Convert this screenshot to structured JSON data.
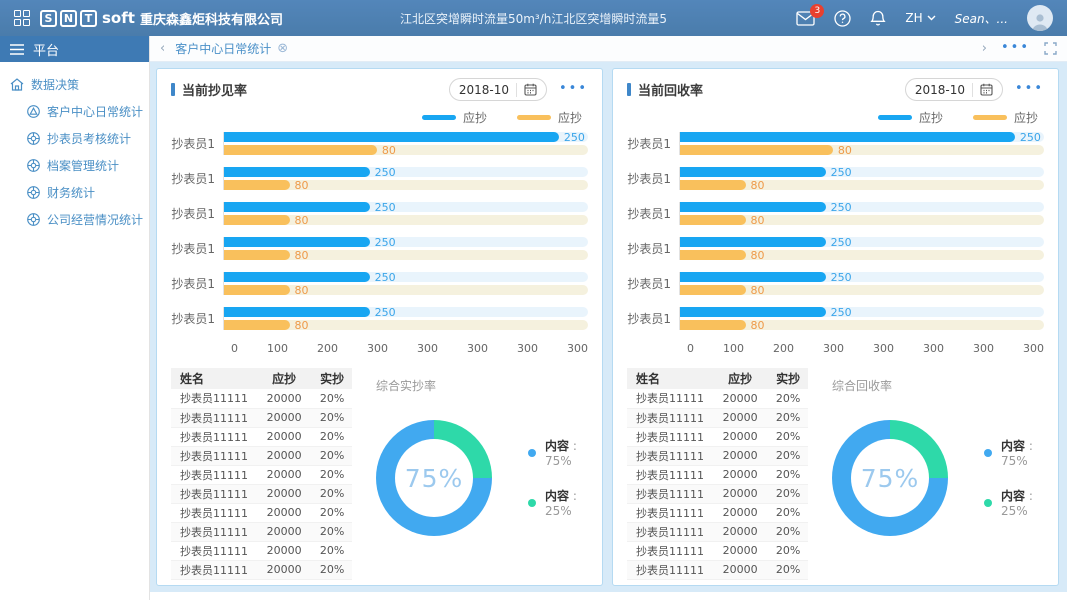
{
  "header": {
    "logo_snt": [
      "S",
      "N",
      "T"
    ],
    "logo_soft": "soft",
    "company": "重庆森鑫炬科技有限公司",
    "announcement": "江北区突增瞬时流量50m³/h江北区突增瞬时流量5",
    "mail_badge": "3",
    "lang": "ZH",
    "user": "Sean、..."
  },
  "sidebar": {
    "title": "平台",
    "root_item": "数据决策",
    "items": [
      {
        "label": "客户中心日常统计"
      },
      {
        "label": "抄表员考核统计"
      },
      {
        "label": "档案管理统计"
      },
      {
        "label": "财务统计"
      },
      {
        "label": "公司经营情况统计"
      }
    ]
  },
  "tabbar": {
    "active_tab": "客户中心日常统计"
  },
  "panels": [
    {
      "title": "当前抄见率",
      "date": "2018-10",
      "table": {
        "headers": [
          "姓名",
          "应抄",
          "实抄"
        ],
        "rows": [
          [
            "抄表员11111",
            "20000",
            "20%"
          ],
          [
            "抄表员11111",
            "20000",
            "20%"
          ],
          [
            "抄表员11111",
            "20000",
            "20%"
          ],
          [
            "抄表员11111",
            "20000",
            "20%"
          ],
          [
            "抄表员11111",
            "20000",
            "20%"
          ],
          [
            "抄表员11111",
            "20000",
            "20%"
          ],
          [
            "抄表员11111",
            "20000",
            "20%"
          ],
          [
            "抄表员11111",
            "20000",
            "20%"
          ],
          [
            "抄表员11111",
            "20000",
            "20%"
          ],
          [
            "抄表员11111",
            "20000",
            "20%"
          ]
        ]
      }
    },
    {
      "title": "当前回收率",
      "date": "2018-10",
      "table": {
        "headers": [
          "姓名",
          "应抄",
          "实抄"
        ],
        "rows": [
          [
            "抄表员11111",
            "20000",
            "20%"
          ],
          [
            "抄表员11111",
            "20000",
            "20%"
          ],
          [
            "抄表员11111",
            "20000",
            "20%"
          ],
          [
            "抄表员11111",
            "20000",
            "20%"
          ],
          [
            "抄表员11111",
            "20000",
            "20%"
          ],
          [
            "抄表员11111",
            "20000",
            "20%"
          ],
          [
            "抄表员11111",
            "20000",
            "20%"
          ],
          [
            "抄表员11111",
            "20000",
            "20%"
          ],
          [
            "抄表员11111",
            "20000",
            "20%"
          ],
          [
            "抄表员11111",
            "20000",
            "20%"
          ]
        ]
      }
    }
  ],
  "chart_data": [
    {
      "type": "bar",
      "panel": 0,
      "orientation": "horizontal",
      "title": "当前抄见率",
      "categories": [
        "抄表员1",
        "抄表员1",
        "抄表员1",
        "抄表员1",
        "抄表员1",
        "抄表员1"
      ],
      "series": [
        {
          "name": "应抄",
          "color": "#18a6f2",
          "track": "#e9f4fc",
          "label_color": "#3ba5e9",
          "values": [
            250,
            250,
            250,
            250,
            250,
            250
          ],
          "widths_pct": [
            92,
            40,
            40,
            40,
            40,
            40
          ]
        },
        {
          "name": "应抄",
          "color": "#f9c05c",
          "track": "#f5f1de",
          "label_color": "#ee9a49",
          "values": [
            80,
            80,
            80,
            80,
            80,
            80
          ],
          "widths_pct": [
            42,
            18,
            18,
            18,
            18,
            18
          ]
        }
      ],
      "x_ticks": [
        "0",
        "100",
        "200",
        "300",
        "300",
        "300",
        "300",
        "300"
      ],
      "legend_position": "top-right",
      "grid": false
    },
    {
      "type": "pie",
      "panel": 0,
      "title": "综合实抄率",
      "center_label": "75%",
      "slices": [
        {
          "name": "内容",
          "pct": 75,
          "color": "#41a9f0"
        },
        {
          "name": "内容",
          "pct": 25,
          "color": "#2ed9a9"
        }
      ],
      "legend_position": "right"
    },
    {
      "type": "bar",
      "panel": 1,
      "orientation": "horizontal",
      "title": "当前回收率",
      "categories": [
        "抄表员1",
        "抄表员1",
        "抄表员1",
        "抄表员1",
        "抄表员1",
        "抄表员1"
      ],
      "series": [
        {
          "name": "应抄",
          "color": "#18a6f2",
          "track": "#e9f4fc",
          "label_color": "#3ba5e9",
          "values": [
            250,
            250,
            250,
            250,
            250,
            250
          ],
          "widths_pct": [
            92,
            40,
            40,
            40,
            40,
            40
          ]
        },
        {
          "name": "应抄",
          "color": "#f9c05c",
          "track": "#f5f1de",
          "label_color": "#ee9a49",
          "values": [
            80,
            80,
            80,
            80,
            80,
            80
          ],
          "widths_pct": [
            42,
            18,
            18,
            18,
            18,
            18
          ]
        }
      ],
      "x_ticks": [
        "0",
        "100",
        "200",
        "300",
        "300",
        "300",
        "300",
        "300"
      ],
      "legend_position": "top-right",
      "grid": false
    },
    {
      "type": "pie",
      "panel": 1,
      "title": "综合回收率",
      "center_label": "75%",
      "slices": [
        {
          "name": "内容",
          "pct": 75,
          "color": "#41a9f0"
        },
        {
          "name": "内容",
          "pct": 25,
          "color": "#2ed9a9"
        }
      ],
      "legend_position": "right"
    }
  ]
}
